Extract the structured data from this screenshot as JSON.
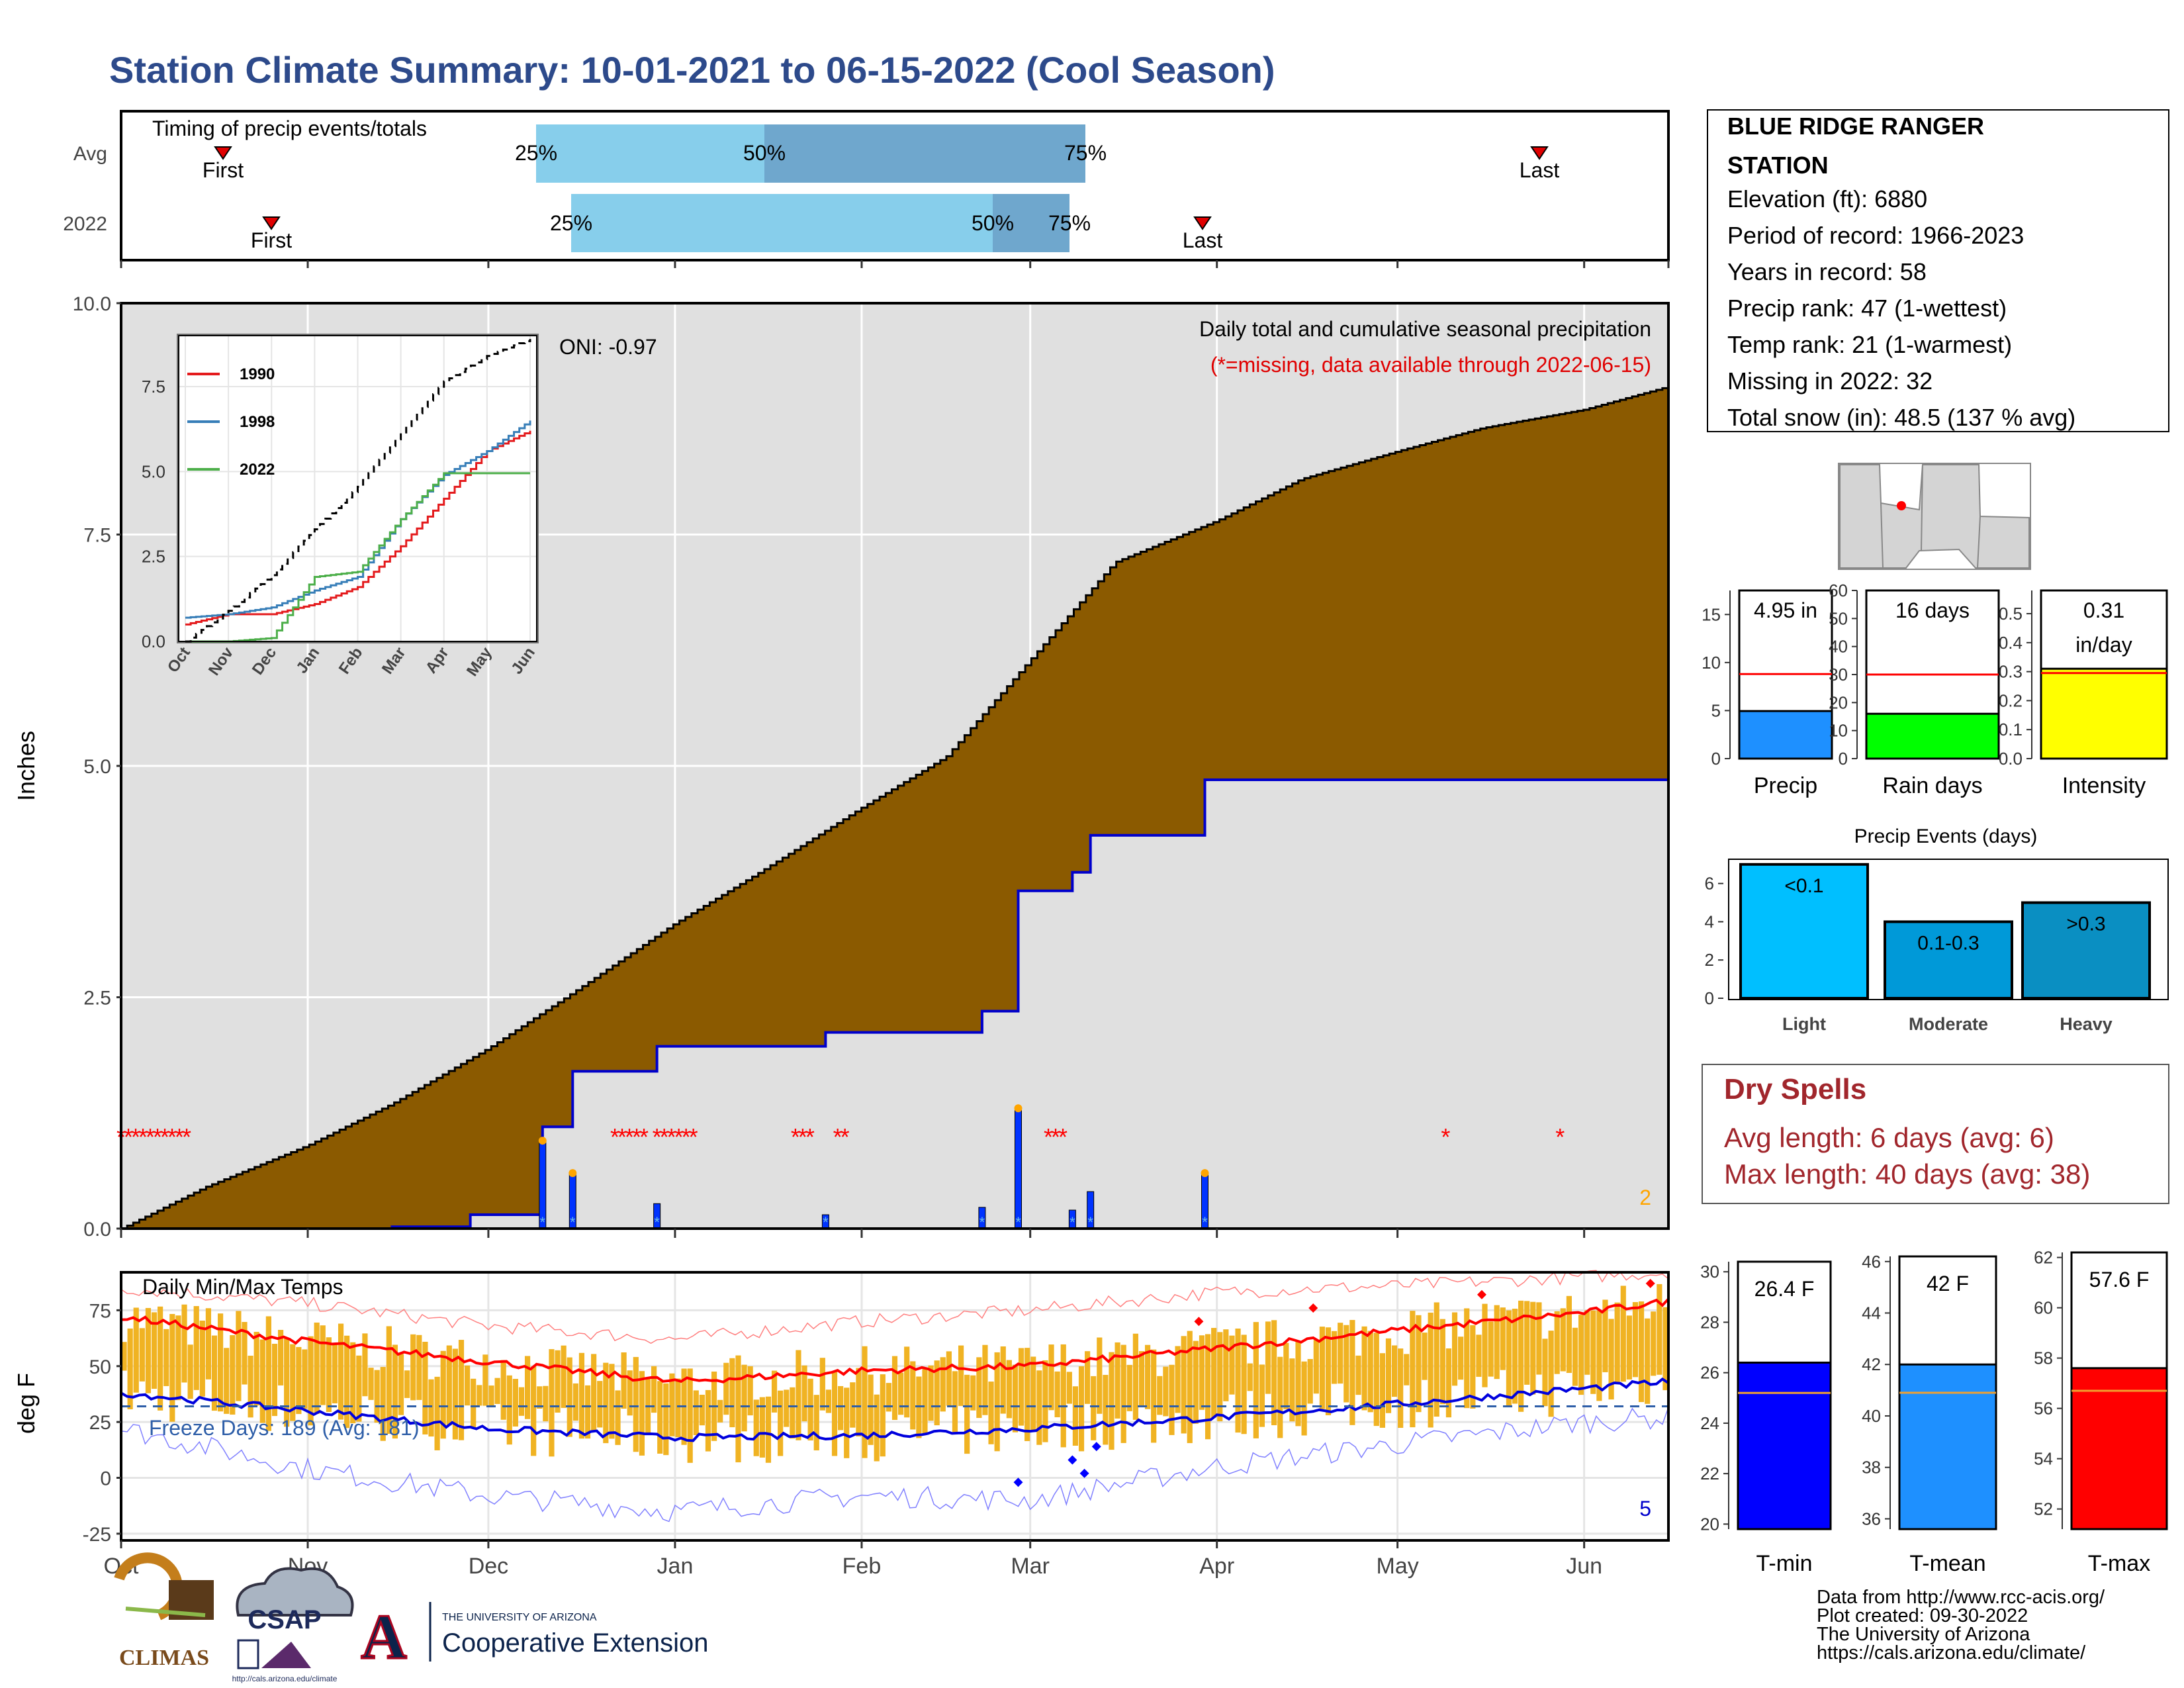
{
  "title": "Station Climate Summary: 10-01-2021 to 06-15-2022 (Cool Season)",
  "timing": {
    "label": "Timing of precip events/totals",
    "rows": [
      {
        "name": "Avg",
        "first_label": "First",
        "last_label": "Last",
        "q25_label": "25%",
        "q50_label": "50%",
        "q75_label": "75%"
      },
      {
        "name": "2022",
        "first_label": "First",
        "last_label": "Last",
        "q25_label": "25%",
        "q50_label": "50%",
        "q75_label": "75%"
      }
    ]
  },
  "precip_panel": {
    "ylabel": "Inches",
    "yticks": [
      "0.0",
      "2.5",
      "5.0",
      "7.5",
      "10.0"
    ],
    "caption1": "Daily total and cumulative seasonal precipitation",
    "caption2": "(*=missing, data available through 2022-06-15)",
    "oni": "ONI: -0.97",
    "corner_count": "2",
    "colors": {
      "cumulative_avg": "#8b5a00",
      "cumulative_2022": "#0000cc",
      "background": "#e0e0e0",
      "missing": "#ff0000",
      "extreme": "#ffa500"
    }
  },
  "inset": {
    "legend": [
      "1990",
      "1998",
      "2022"
    ],
    "colors": [
      "#e41a1c",
      "#377eb8",
      "#4daf4a"
    ],
    "yticks": [
      "0.0",
      "2.5",
      "5.0",
      "7.5"
    ],
    "xticks": [
      "Oct",
      "Nov",
      "Dec",
      "Jan",
      "Feb",
      "Mar",
      "Apr",
      "May",
      "Jun"
    ]
  },
  "temp_panel": {
    "ylabel": "deg F",
    "label": "Daily Min/Max Temps",
    "freeze": "Freeze Days: 189 (Avg: 181)",
    "corner_count": "5",
    "yticks": [
      "-25",
      "0",
      "25",
      "50",
      "75"
    ],
    "xticks": [
      "Oct",
      "Nov",
      "Dec",
      "Jan",
      "Feb",
      "Mar",
      "Apr",
      "May",
      "Jun"
    ]
  },
  "station": {
    "name_line1": "BLUE RIDGE RANGER",
    "name_line2": "STATION",
    "elevation": "Elevation (ft): 6880",
    "period": "Period of record: 1966-2023",
    "years": "Years in record: 58",
    "precip_rank": "Precip rank: 47 (1-wettest)",
    "temp_rank": "Temp rank: 21 (1-warmest)",
    "missing": "Missing in 2022: 32",
    "snow": "Total snow (in): 48.5 (137 % avg)"
  },
  "summary_bars": [
    {
      "label": "Precip",
      "value_text": "4.95 in",
      "value": 4.95,
      "avg": 8.8,
      "ymax": 17.5,
      "yticks": [
        "0",
        "5",
        "10",
        "15"
      ],
      "tickvals": [
        0,
        5,
        10,
        15
      ],
      "color": "#1e90ff"
    },
    {
      "label": "Rain days",
      "value_text": "16 days",
      "value": 16,
      "avg": 30,
      "ymax": 60,
      "yticks": [
        "0",
        "10",
        "20",
        "30",
        "40",
        "50",
        "60"
      ],
      "tickvals": [
        0,
        10,
        20,
        30,
        40,
        50,
        60
      ],
      "color": "#00ff00"
    },
    {
      "label": "Intensity",
      "value_text": "0.31",
      "value_text2": "in/day",
      "value": 0.31,
      "avg": 0.295,
      "ymax": 0.58,
      "yticks": [
        "0.0",
        "0.1",
        "0.2",
        "0.3",
        "0.4",
        "0.5"
      ],
      "tickvals": [
        0,
        0.1,
        0.2,
        0.3,
        0.4,
        0.5
      ],
      "color": "#ffff00"
    }
  ],
  "events": {
    "title": "Precip Events (days)",
    "categories": [
      "Light",
      "Moderate",
      "Heavy"
    ],
    "range_labels": [
      "<0.1",
      "0.1-0.3",
      ">0.3"
    ],
    "values": [
      7,
      4,
      5
    ],
    "yticks": [
      "0",
      "2",
      "4",
      "6"
    ],
    "colors": [
      "#00bfff",
      "#0099d8",
      "#0a8fc2"
    ]
  },
  "dry_spells": {
    "title": "Dry Spells",
    "avg": "Avg length: 6 days (avg: 6)",
    "max": "Max length: 40 days (avg: 38)"
  },
  "temp_bars": [
    {
      "label": "T-min",
      "value_text": "26.4 F",
      "value": 26.4,
      "avg": 25.2,
      "ymin": 19.8,
      "ymax": 30.4,
      "yticks": [
        "20",
        "22",
        "24",
        "26",
        "28",
        "30"
      ],
      "tickvals": [
        20,
        22,
        24,
        26,
        28,
        30
      ],
      "color": "#0000ff"
    },
    {
      "label": "T-mean",
      "value_text": "42 F",
      "value": 42.0,
      "avg": 40.9,
      "ymin": 35.6,
      "ymax": 46.2,
      "yticks": [
        "36",
        "38",
        "40",
        "42",
        "44",
        "46"
      ],
      "tickvals": [
        36,
        38,
        40,
        42,
        44,
        46
      ],
      "color": "#1e90ff"
    },
    {
      "label": "T-max",
      "value_text": "57.6 F",
      "value": 57.6,
      "avg": 56.7,
      "ymin": 51.2,
      "ymax": 62.2,
      "yticks": [
        "52",
        "54",
        "56",
        "58",
        "60",
        "62"
      ],
      "tickvals": [
        52,
        54,
        56,
        58,
        60,
        62
      ],
      "color": "#ff0000"
    }
  ],
  "footer": {
    "line1": "Data from http://www.rcc-acis.org/",
    "line2": "Plot created: 09-30-2022",
    "line3": "The University of Arizona",
    "line4": "https://cals.arizona.edu/climate/"
  },
  "logos": {
    "climas": "CLIMAS",
    "csap": "CSAP",
    "csap_url": "http://cals.arizona.edu/climate",
    "ua_small": "THE UNIVERSITY OF ARIZONA",
    "ua_big": "Cooperative Extension",
    "ua_letter": "A"
  },
  "chart_data": [
    {
      "type": "bar",
      "title": "Timing of precip events/totals",
      "categories": [
        "Avg",
        "2022"
      ],
      "series": [
        {
          "name": "First",
          "values": [
            "2021-10-17",
            "2021-11-05"
          ]
        },
        {
          "name": "25%",
          "values": [
            "2021-12-16",
            "2021-12-30"
          ]
        },
        {
          "name": "50%",
          "values": [
            "2022-01-30",
            "2022-02-25"
          ]
        },
        {
          "name": "75%",
          "values": [
            "2022-03-09",
            "2022-03-10"
          ]
        },
        {
          "name": "Last",
          "values": [
            "2022-05-31",
            "2022-04-01"
          ]
        }
      ]
    },
    {
      "type": "area",
      "title": "Daily total and cumulative seasonal precipitation",
      "ylabel": "Inches",
      "ylim": [
        0,
        10
      ],
      "x_dates": [
        "2021-10-01",
        "2021-10-15",
        "2021-11-01",
        "2021-11-15",
        "2021-12-01",
        "2021-12-15",
        "2022-01-01",
        "2022-01-15",
        "2022-02-01",
        "2022-02-15",
        "2022-03-01",
        "2022-03-15",
        "2022-04-01",
        "2022-04-15",
        "2022-05-01",
        "2022-05-15",
        "2022-06-01",
        "2022-06-15"
      ],
      "series": [
        {
          "name": "Average cumulative",
          "values": [
            0.0,
            0.45,
            0.9,
            1.35,
            1.95,
            2.55,
            3.3,
            3.85,
            4.55,
            5.1,
            6.15,
            7.2,
            7.65,
            8.1,
            8.4,
            8.65,
            8.85,
            9.1
          ]
        },
        {
          "name": "2022 cumulative",
          "values": [
            0.0,
            0.0,
            0.0,
            0.05,
            0.15,
            1.1,
            1.9,
            1.9,
            2.05,
            2.05,
            3.65,
            4.25,
            4.95,
            4.95,
            4.95,
            4.95,
            4.95,
            4.95
          ]
        }
      ],
      "daily_2022": [
        {
          "date": "2021-12-10",
          "value": 0.95
        },
        {
          "date": "2021-12-15",
          "value": 0.6
        },
        {
          "date": "2021-12-29",
          "value": 0.27
        },
        {
          "date": "2022-01-26",
          "value": 0.15
        },
        {
          "date": "2022-02-21",
          "value": 0.23
        },
        {
          "date": "2022-02-27",
          "value": 1.3
        },
        {
          "date": "2022-03-08",
          "value": 0.2
        },
        {
          "date": "2022-03-11",
          "value": 0.4
        },
        {
          "date": "2022-03-30",
          "value": 0.6
        }
      ]
    },
    {
      "type": "line",
      "title": "Cumulative precipitation by year (inset)",
      "ylim": [
        0,
        9
      ],
      "x": [
        "Oct",
        "Nov",
        "Dec",
        "Jan",
        "Feb",
        "Mar",
        "Apr",
        "May",
        "Jun"
      ],
      "series": [
        {
          "name": "1990",
          "values": [
            0.5,
            0.8,
            0.8,
            1.1,
            1.6,
            2.8,
            4.2,
            5.6,
            6.2
          ]
        },
        {
          "name": "1998",
          "values": [
            0.7,
            0.8,
            1.0,
            1.5,
            1.9,
            3.6,
            4.9,
            5.6,
            6.5
          ]
        },
        {
          "name": "2022",
          "values": [
            0.0,
            0.0,
            0.1,
            1.9,
            2.05,
            3.6,
            4.95,
            4.95,
            4.95
          ]
        },
        {
          "name": "Average",
          "values": [
            0.0,
            0.9,
            1.95,
            3.3,
            4.55,
            6.15,
            7.65,
            8.4,
            8.9
          ]
        }
      ]
    },
    {
      "type": "line",
      "title": "Daily Min/Max Temps",
      "ylabel": "deg F",
      "ylim": [
        -28,
        90
      ],
      "x_dates": [
        "2021-10-01",
        "2021-11-01",
        "2021-12-01",
        "2022-01-01",
        "2022-02-01",
        "2022-03-01",
        "2022-04-01",
        "2022-05-01",
        "2022-06-01",
        "2022-06-15"
      ],
      "series": [
        {
          "name": "Avg max",
          "values": [
            72,
            61,
            52,
            43,
            48,
            50,
            58,
            66,
            74,
            79
          ]
        },
        {
          "name": "Avg min",
          "values": [
            38,
            30,
            22,
            18,
            19,
            22,
            27,
            33,
            40,
            43
          ]
        },
        {
          "name": "Record high",
          "values": [
            85,
            78,
            68,
            62,
            70,
            75,
            83,
            86,
            90,
            92
          ]
        },
        {
          "name": "Record low",
          "values": [
            22,
            4,
            -8,
            -15,
            -8,
            -10,
            5,
            15,
            25,
            27
          ]
        }
      ],
      "freeze_line": 32
    }
  ]
}
